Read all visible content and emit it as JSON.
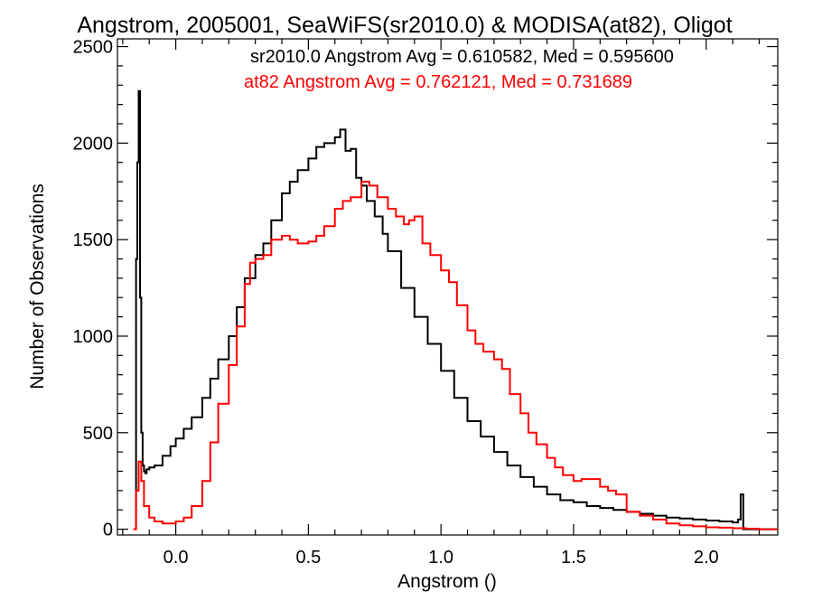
{
  "chart_data": {
    "type": "line",
    "title": "Angstrom, 2005001, SeaWiFS(sr2010.0) & MODISA(at82), Oligot",
    "xlabel": "Angstrom ()",
    "ylabel": "Number of Observations",
    "xlim": [
      -0.22,
      2.27
    ],
    "ylim": [
      -30,
      2540
    ],
    "xticks": [
      "0.0",
      "0.5",
      "1.0",
      "1.5",
      "2.0"
    ],
    "yticks": [
      "0",
      "500",
      "1000",
      "1500",
      "2000",
      "2500"
    ],
    "grid": false,
    "legend": "top-right",
    "annotations": [
      "sr2010.0 Angstrom Avg = 0.610582, Med = 0.595600",
      "at82 Angstrom Avg = 0.762121, Med = 0.731689"
    ],
    "series": [
      {
        "color": "#000000",
        "x": [
          -0.15,
          -0.145,
          -0.14,
          -0.135,
          -0.13,
          -0.125,
          -0.12,
          -0.115,
          -0.11,
          -0.1,
          -0.08,
          -0.05,
          -0.02,
          0.0,
          0.03,
          0.06,
          0.1,
          0.13,
          0.16,
          0.2,
          0.23,
          0.26,
          0.3,
          0.33,
          0.36,
          0.4,
          0.43,
          0.46,
          0.5,
          0.53,
          0.56,
          0.6,
          0.62,
          0.64,
          0.66,
          0.68,
          0.7,
          0.72,
          0.75,
          0.78,
          0.8,
          0.85,
          0.9,
          0.95,
          1.0,
          1.05,
          1.1,
          1.15,
          1.2,
          1.25,
          1.3,
          1.35,
          1.4,
          1.45,
          1.5,
          1.55,
          1.6,
          1.65,
          1.7,
          1.75,
          1.8,
          1.85,
          1.9,
          1.95,
          2.0,
          2.05,
          2.1,
          2.12,
          2.13,
          2.14,
          2.15,
          2.2,
          2.25
        ],
        "values": [
          1400,
          1900,
          2270,
          1200,
          500,
          330,
          300,
          290,
          310,
          320,
          330,
          380,
          430,
          470,
          520,
          580,
          680,
          780,
          880,
          1000,
          1150,
          1300,
          1420,
          1480,
          1600,
          1740,
          1800,
          1860,
          1920,
          1980,
          2000,
          2030,
          2070,
          1960,
          1970,
          1820,
          1780,
          1700,
          1620,
          1530,
          1440,
          1250,
          1100,
          960,
          820,
          680,
          560,
          480,
          400,
          330,
          270,
          220,
          180,
          150,
          140,
          120,
          110,
          100,
          90,
          80,
          70,
          60,
          55,
          50,
          45,
          40,
          35,
          50,
          180,
          0,
          0,
          0,
          0
        ]
      },
      {
        "color": "#ff0000",
        "x": [
          -0.16,
          -0.15,
          -0.14,
          -0.13,
          -0.12,
          -0.1,
          -0.08,
          -0.05,
          -0.02,
          0.0,
          0.03,
          0.06,
          0.1,
          0.13,
          0.16,
          0.2,
          0.23,
          0.26,
          0.28,
          0.3,
          0.33,
          0.36,
          0.4,
          0.43,
          0.46,
          0.5,
          0.53,
          0.56,
          0.6,
          0.63,
          0.66,
          0.7,
          0.73,
          0.76,
          0.8,
          0.83,
          0.86,
          0.88,
          0.9,
          0.93,
          0.96,
          1.0,
          1.03,
          1.06,
          1.1,
          1.13,
          1.16,
          1.2,
          1.23,
          1.26,
          1.3,
          1.33,
          1.36,
          1.4,
          1.43,
          1.46,
          1.5,
          1.53,
          1.56,
          1.6,
          1.63,
          1.66,
          1.7,
          1.75,
          1.8,
          1.85,
          1.9,
          1.95,
          2.0,
          2.05,
          2.1,
          2.15,
          2.2,
          2.25
        ],
        "values": [
          0,
          200,
          350,
          250,
          120,
          60,
          40,
          30,
          30,
          40,
          60,
          120,
          250,
          450,
          650,
          850,
          1050,
          1270,
          1380,
          1400,
          1420,
          1500,
          1520,
          1500,
          1480,
          1490,
          1520,
          1570,
          1660,
          1700,
          1720,
          1800,
          1780,
          1720,
          1660,
          1620,
          1580,
          1600,
          1620,
          1480,
          1420,
          1340,
          1280,
          1160,
          1030,
          960,
          920,
          880,
          830,
          700,
          600,
          500,
          440,
          370,
          320,
          280,
          250,
          260,
          260,
          220,
          200,
          180,
          90,
          70,
          50,
          30,
          20,
          15,
          10,
          8,
          5,
          3,
          0,
          0
        ]
      }
    ]
  }
}
